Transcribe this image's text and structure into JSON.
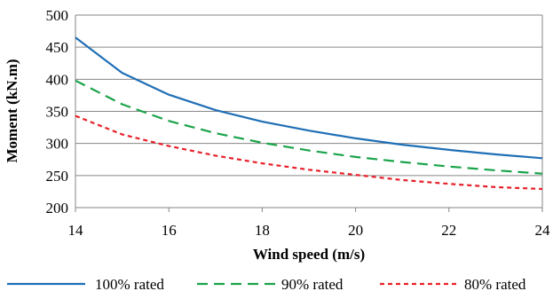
{
  "chart_data": {
    "type": "line",
    "title": "",
    "xlabel": "Wind speed (m/s)",
    "ylabel": "Moment (kN.m)",
    "xlim": [
      14,
      24
    ],
    "ylim": [
      200,
      500
    ],
    "x_ticks": [
      "14",
      "16",
      "18",
      "20",
      "22",
      "24"
    ],
    "y_ticks": [
      "200",
      "250",
      "300",
      "350",
      "400",
      "450",
      "500"
    ],
    "grid": "horizontal",
    "legend_position": "bottom",
    "x": [
      14,
      15,
      16,
      17,
      18,
      19,
      20,
      21,
      22,
      23,
      24
    ],
    "series": [
      {
        "name": "100% rated",
        "color": "#1f6fb5",
        "dash": "solid",
        "values": [
          465,
          410,
          376,
          352,
          334,
          320,
          308,
          298,
          290,
          283,
          277
        ]
      },
      {
        "name": "90% rated",
        "color": "#1aa34a",
        "dash": "long-dash",
        "values": [
          398,
          361,
          335,
          316,
          301,
          289,
          279,
          271,
          264,
          258,
          253
        ]
      },
      {
        "name": "80% rated",
        "color": "#e8202a",
        "dash": "short-dash",
        "values": [
          343,
          314,
          296,
          281,
          269,
          259,
          251,
          243,
          237,
          232,
          229
        ]
      }
    ]
  }
}
